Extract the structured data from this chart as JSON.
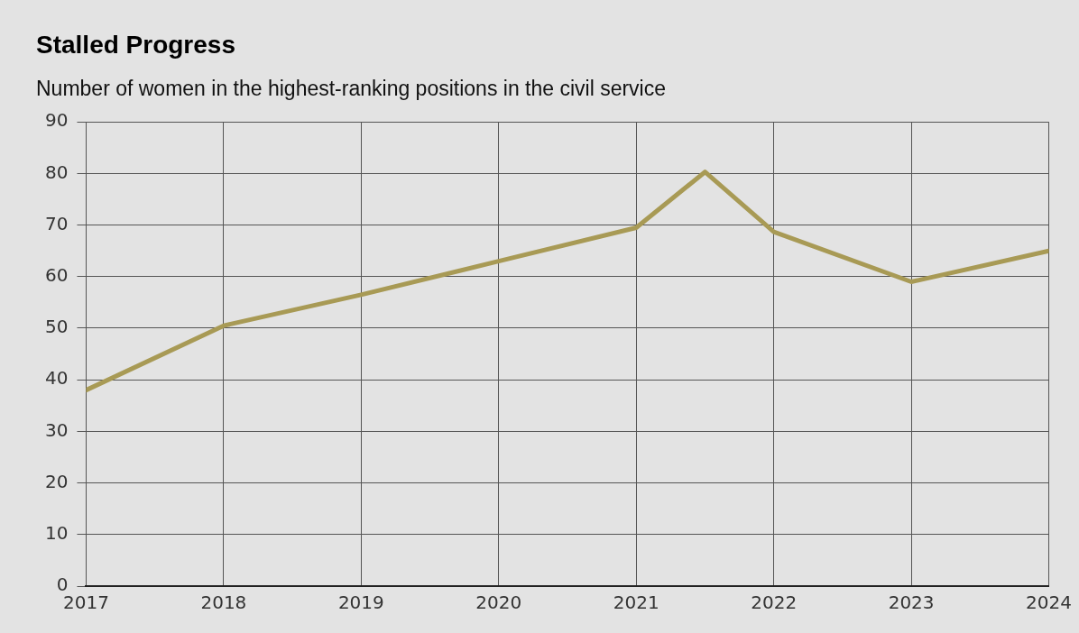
{
  "chart_data": {
    "type": "line",
    "title": "Stalled Progress",
    "subtitle": "Number of women in the highest-ranking positions in the civil service",
    "x": [
      2017,
      2018,
      2019,
      2020,
      2021,
      2021.5,
      2022,
      2023,
      2024
    ],
    "series": [
      {
        "color": "#a89a55",
        "values": [
          38,
          50.5,
          56.5,
          63,
          69.5,
          80.3,
          68.7,
          59,
          65
        ]
      }
    ],
    "xlim": [
      2017,
      2024
    ],
    "xticks": [
      2017,
      2018,
      2019,
      2020,
      2021,
      2022,
      2023,
      2024
    ],
    "ylim": [
      0,
      90
    ],
    "yticks": [
      0,
      10,
      20,
      30,
      40,
      50,
      60,
      70,
      80,
      90
    ],
    "grid": true,
    "legend": false,
    "marker": "none",
    "line_style": "solid"
  }
}
